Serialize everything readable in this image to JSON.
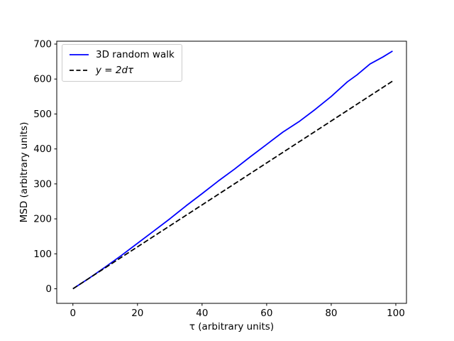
{
  "figure": {
    "background": "#ffffff"
  },
  "chart_data": {
    "type": "line",
    "title": "",
    "xlabel": "τ (arbitrary units)",
    "ylabel": "MSD (arbitrary units)",
    "xlim": [
      -5,
      103.3
    ],
    "ylim": [
      -41.7,
      708.2
    ],
    "xticks": [
      0,
      20,
      40,
      60,
      80,
      100
    ],
    "yticks": [
      0,
      100,
      200,
      300,
      400,
      500,
      600,
      700
    ],
    "grid": false,
    "legend_position": "upper left",
    "series": [
      {
        "name": "3D random walk",
        "color": "#0000ff",
        "style": "solid",
        "x": [
          0,
          5,
          10,
          15,
          20,
          25,
          30,
          35,
          40,
          45,
          50,
          55,
          60,
          65,
          70,
          75,
          80,
          85,
          88,
          92,
          96,
          99
        ],
        "y": [
          0,
          30,
          62,
          95,
          130,
          165,
          200,
          237,
          272,
          308,
          342,
          378,
          413,
          448,
          478,
          513,
          550,
          592,
          612,
          643,
          663,
          680
        ]
      },
      {
        "name": "y = 2dτ",
        "color": "#000000",
        "style": "dashed",
        "x": [
          0,
          99
        ],
        "y": [
          0,
          594
        ]
      }
    ]
  }
}
